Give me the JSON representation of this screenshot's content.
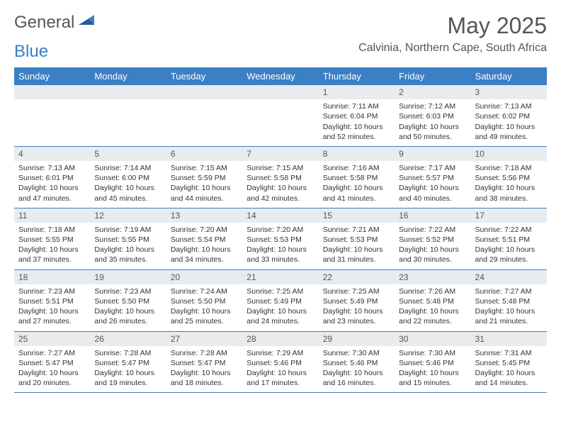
{
  "logo": {
    "general": "General",
    "blue": "Blue"
  },
  "title": "May 2025",
  "location": "Calvinia, Northern Cape, South Africa",
  "weekdays": [
    "Sunday",
    "Monday",
    "Tuesday",
    "Wednesday",
    "Thursday",
    "Friday",
    "Saturday"
  ],
  "colors": {
    "header_bg": "#3b7fc4",
    "daynum_bg": "#e8ecef"
  },
  "weeks": [
    [
      null,
      null,
      null,
      null,
      {
        "n": "1",
        "sunrise": "7:11 AM",
        "sunset": "6:04 PM",
        "daylight": "10 hours and 52 minutes."
      },
      {
        "n": "2",
        "sunrise": "7:12 AM",
        "sunset": "6:03 PM",
        "daylight": "10 hours and 50 minutes."
      },
      {
        "n": "3",
        "sunrise": "7:13 AM",
        "sunset": "6:02 PM",
        "daylight": "10 hours and 49 minutes."
      }
    ],
    [
      {
        "n": "4",
        "sunrise": "7:13 AM",
        "sunset": "6:01 PM",
        "daylight": "10 hours and 47 minutes."
      },
      {
        "n": "5",
        "sunrise": "7:14 AM",
        "sunset": "6:00 PM",
        "daylight": "10 hours and 45 minutes."
      },
      {
        "n": "6",
        "sunrise": "7:15 AM",
        "sunset": "5:59 PM",
        "daylight": "10 hours and 44 minutes."
      },
      {
        "n": "7",
        "sunrise": "7:15 AM",
        "sunset": "5:58 PM",
        "daylight": "10 hours and 42 minutes."
      },
      {
        "n": "8",
        "sunrise": "7:16 AM",
        "sunset": "5:58 PM",
        "daylight": "10 hours and 41 minutes."
      },
      {
        "n": "9",
        "sunrise": "7:17 AM",
        "sunset": "5:57 PM",
        "daylight": "10 hours and 40 minutes."
      },
      {
        "n": "10",
        "sunrise": "7:18 AM",
        "sunset": "5:56 PM",
        "daylight": "10 hours and 38 minutes."
      }
    ],
    [
      {
        "n": "11",
        "sunrise": "7:18 AM",
        "sunset": "5:55 PM",
        "daylight": "10 hours and 37 minutes."
      },
      {
        "n": "12",
        "sunrise": "7:19 AM",
        "sunset": "5:55 PM",
        "daylight": "10 hours and 35 minutes."
      },
      {
        "n": "13",
        "sunrise": "7:20 AM",
        "sunset": "5:54 PM",
        "daylight": "10 hours and 34 minutes."
      },
      {
        "n": "14",
        "sunrise": "7:20 AM",
        "sunset": "5:53 PM",
        "daylight": "10 hours and 33 minutes."
      },
      {
        "n": "15",
        "sunrise": "7:21 AM",
        "sunset": "5:53 PM",
        "daylight": "10 hours and 31 minutes."
      },
      {
        "n": "16",
        "sunrise": "7:22 AM",
        "sunset": "5:52 PM",
        "daylight": "10 hours and 30 minutes."
      },
      {
        "n": "17",
        "sunrise": "7:22 AM",
        "sunset": "5:51 PM",
        "daylight": "10 hours and 29 minutes."
      }
    ],
    [
      {
        "n": "18",
        "sunrise": "7:23 AM",
        "sunset": "5:51 PM",
        "daylight": "10 hours and 27 minutes."
      },
      {
        "n": "19",
        "sunrise": "7:23 AM",
        "sunset": "5:50 PM",
        "daylight": "10 hours and 26 minutes."
      },
      {
        "n": "20",
        "sunrise": "7:24 AM",
        "sunset": "5:50 PM",
        "daylight": "10 hours and 25 minutes."
      },
      {
        "n": "21",
        "sunrise": "7:25 AM",
        "sunset": "5:49 PM",
        "daylight": "10 hours and 24 minutes."
      },
      {
        "n": "22",
        "sunrise": "7:25 AM",
        "sunset": "5:49 PM",
        "daylight": "10 hours and 23 minutes."
      },
      {
        "n": "23",
        "sunrise": "7:26 AM",
        "sunset": "5:48 PM",
        "daylight": "10 hours and 22 minutes."
      },
      {
        "n": "24",
        "sunrise": "7:27 AM",
        "sunset": "5:48 PM",
        "daylight": "10 hours and 21 minutes."
      }
    ],
    [
      {
        "n": "25",
        "sunrise": "7:27 AM",
        "sunset": "5:47 PM",
        "daylight": "10 hours and 20 minutes."
      },
      {
        "n": "26",
        "sunrise": "7:28 AM",
        "sunset": "5:47 PM",
        "daylight": "10 hours and 19 minutes."
      },
      {
        "n": "27",
        "sunrise": "7:28 AM",
        "sunset": "5:47 PM",
        "daylight": "10 hours and 18 minutes."
      },
      {
        "n": "28",
        "sunrise": "7:29 AM",
        "sunset": "5:46 PM",
        "daylight": "10 hours and 17 minutes."
      },
      {
        "n": "29",
        "sunrise": "7:30 AM",
        "sunset": "5:46 PM",
        "daylight": "10 hours and 16 minutes."
      },
      {
        "n": "30",
        "sunrise": "7:30 AM",
        "sunset": "5:46 PM",
        "daylight": "10 hours and 15 minutes."
      },
      {
        "n": "31",
        "sunrise": "7:31 AM",
        "sunset": "5:45 PM",
        "daylight": "10 hours and 14 minutes."
      }
    ]
  ],
  "labels": {
    "sunrise": "Sunrise: ",
    "sunset": "Sunset: ",
    "daylight": "Daylight: "
  }
}
